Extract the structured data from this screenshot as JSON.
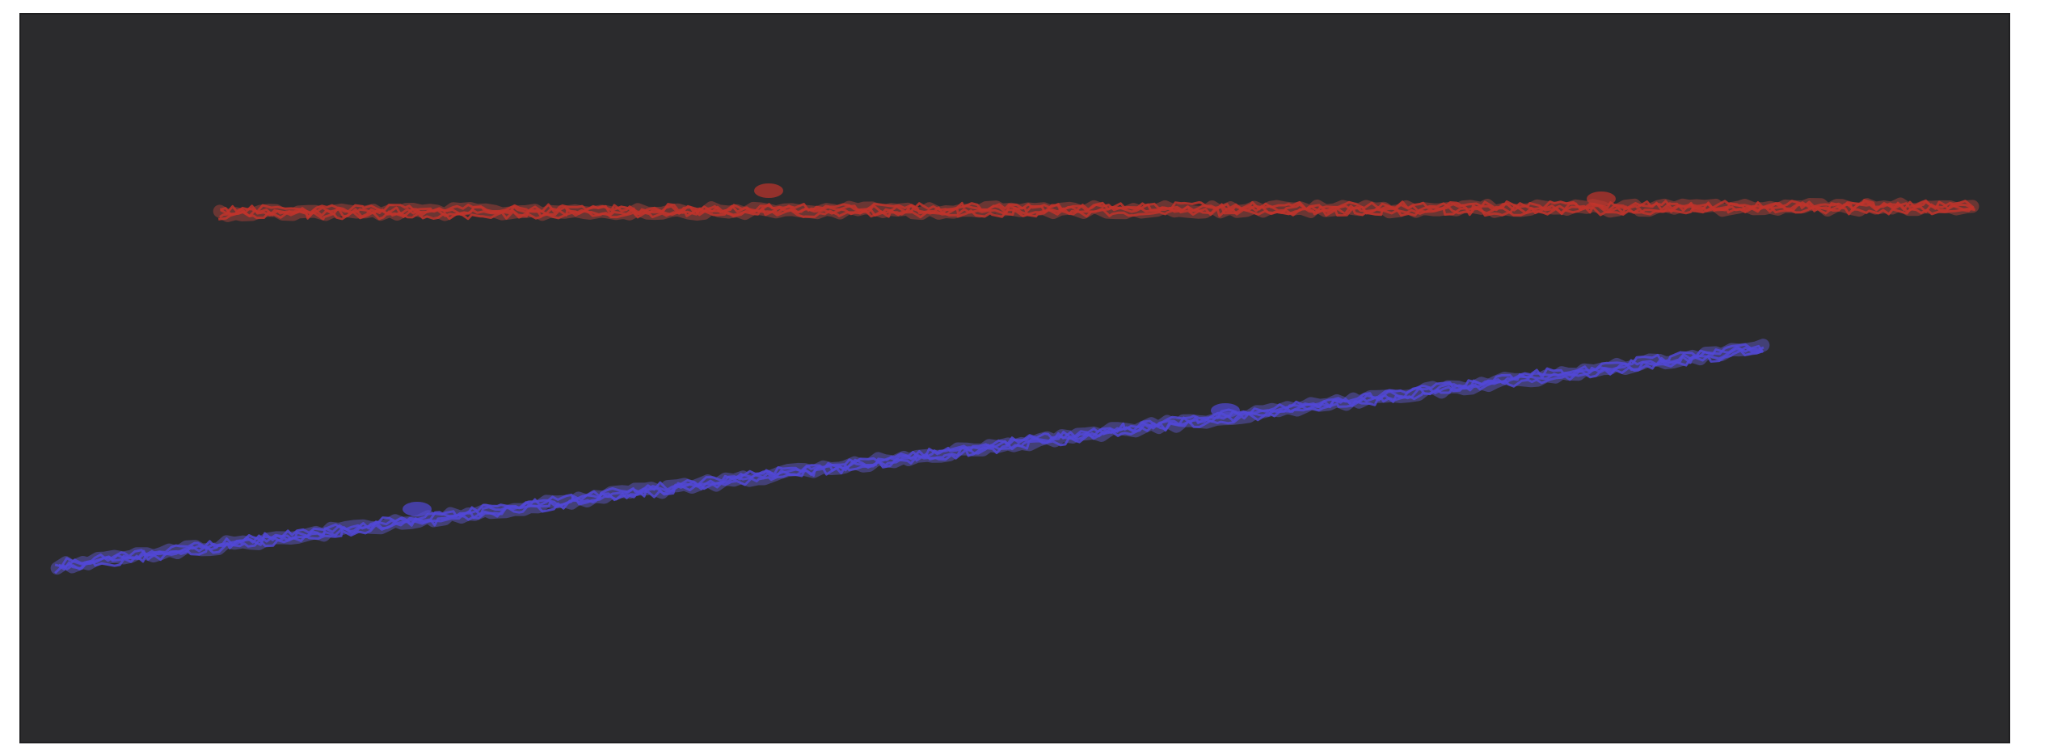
{
  "scene": {
    "background_color": "#2b2b2d",
    "frame_color": "#ffffff",
    "lines": [
      {
        "name": "red-line",
        "color": "#c0342c",
        "glow": "#e04a3e"
      },
      {
        "name": "blue-line",
        "color": "#5148d6",
        "glow": "#6f67ff"
      }
    ]
  }
}
